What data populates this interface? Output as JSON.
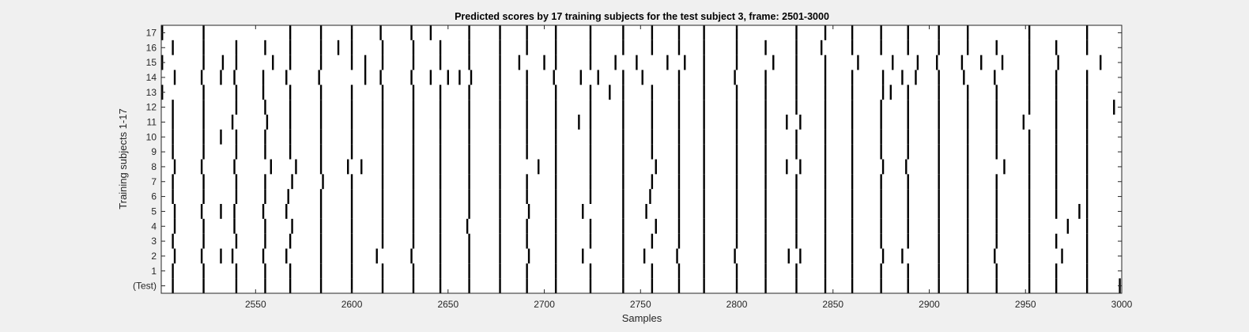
{
  "chart_data": {
    "type": "heatmap",
    "title": "Predicted scores by 17 training subjects for the test subject 3, frame: 2501-3000",
    "xlabel": "Samples",
    "ylabel": "Training subjects 1-17",
    "xlim": [
      2501,
      3000
    ],
    "xticks": [
      2550,
      2600,
      2650,
      2700,
      2750,
      2800,
      2850,
      2900,
      2950,
      3000
    ],
    "yticks": [
      "(Test)",
      "1",
      "2",
      "3",
      "4",
      "5",
      "6",
      "7",
      "8",
      "9",
      "10",
      "11",
      "12",
      "13",
      "14",
      "15",
      "16",
      "17"
    ],
    "grid": false,
    "colors": {
      "background": "#ffffff",
      "mark": "#000000",
      "figure": "#f0f0f0"
    },
    "rows": [
      {
        "label": "(Test)",
        "events": [
          2507,
          2523,
          2540,
          2555,
          2568,
          2584,
          2600,
          2616,
          2632,
          2646,
          2661,
          2677,
          2691,
          2706,
          2724,
          2741,
          2756,
          2770,
          2783,
          2800,
          2815,
          2831,
          2846,
          2860,
          2875,
          2889,
          2905,
          2920,
          2935,
          2952,
          2966,
          2982,
          2999
        ]
      },
      {
        "label": "1",
        "events": [
          2507,
          2523,
          2540,
          2555,
          2568,
          2584,
          2600,
          2616,
          2632,
          2646,
          2661,
          2677,
          2691,
          2706,
          2724,
          2741,
          2756,
          2770,
          2783,
          2800,
          2815,
          2831,
          2846,
          2860,
          2875,
          2889,
          2905,
          2920,
          2935,
          2952,
          2966,
          2982
        ]
      },
      {
        "label": "2",
        "events": [
          2508,
          2522,
          2532,
          2538,
          2554,
          2566,
          2584,
          2600,
          2613,
          2631,
          2646,
          2661,
          2677,
          2692,
          2706,
          2720,
          2741,
          2752,
          2769,
          2783,
          2799,
          2815,
          2827,
          2833,
          2846,
          2860,
          2876,
          2886,
          2905,
          2920,
          2934,
          2952,
          2969,
          2982
        ]
      },
      {
        "label": "3",
        "events": [
          2507,
          2523,
          2540,
          2555,
          2568,
          2584,
          2600,
          2616,
          2632,
          2646,
          2661,
          2677,
          2691,
          2706,
          2724,
          2741,
          2756,
          2770,
          2783,
          2800,
          2815,
          2831,
          2846,
          2860,
          2875,
          2889,
          2905,
          2920,
          2935,
          2952,
          2966,
          2982
        ]
      },
      {
        "label": "4",
        "events": [
          2508,
          2523,
          2539,
          2555,
          2569,
          2584,
          2600,
          2616,
          2632,
          2646,
          2660,
          2677,
          2691,
          2706,
          2724,
          2741,
          2758,
          2770,
          2783,
          2800,
          2815,
          2831,
          2846,
          2860,
          2875,
          2889,
          2905,
          2920,
          2935,
          2952,
          2972,
          2982
        ]
      },
      {
        "label": "5",
        "events": [
          2508,
          2522,
          2532,
          2539,
          2554,
          2566,
          2584,
          2600,
          2616,
          2632,
          2646,
          2661,
          2677,
          2692,
          2706,
          2720,
          2741,
          2753,
          2770,
          2783,
          2800,
          2815,
          2831,
          2846,
          2860,
          2875,
          2889,
          2905,
          2920,
          2935,
          2952,
          2966,
          2978,
          2982
        ]
      },
      {
        "label": "6",
        "events": [
          2507,
          2523,
          2540,
          2555,
          2567,
          2584,
          2600,
          2616,
          2632,
          2646,
          2661,
          2677,
          2691,
          2706,
          2724,
          2741,
          2755,
          2770,
          2783,
          2800,
          2815,
          2831,
          2846,
          2860,
          2875,
          2889,
          2905,
          2920,
          2935,
          2952,
          2966,
          2982
        ]
      },
      {
        "label": "7",
        "events": [
          2507,
          2523,
          2540,
          2555,
          2569,
          2585,
          2600,
          2616,
          2632,
          2646,
          2661,
          2677,
          2691,
          2706,
          2724,
          2741,
          2756,
          2770,
          2783,
          2800,
          2815,
          2831,
          2846,
          2860,
          2875,
          2889,
          2905,
          2920,
          2935,
          2952,
          2966,
          2982
        ]
      },
      {
        "label": "8",
        "events": [
          2508,
          2522,
          2539,
          2558,
          2571,
          2584,
          2598,
          2605,
          2616,
          2632,
          2646,
          2661,
          2677,
          2697,
          2706,
          2724,
          2741,
          2758,
          2770,
          2783,
          2800,
          2815,
          2826,
          2833,
          2846,
          2860,
          2876,
          2888,
          2905,
          2920,
          2939,
          2952,
          2966,
          2982
        ]
      },
      {
        "label": "9",
        "events": [
          2507,
          2523,
          2540,
          2555,
          2568,
          2584,
          2600,
          2616,
          2632,
          2646,
          2661,
          2677,
          2691,
          2706,
          2724,
          2741,
          2756,
          2770,
          2783,
          2800,
          2815,
          2831,
          2846,
          2860,
          2875,
          2889,
          2905,
          2920,
          2935,
          2952,
          2966,
          2982
        ]
      },
      {
        "label": "10",
        "events": [
          2507,
          2523,
          2532,
          2540,
          2555,
          2568,
          2584,
          2600,
          2616,
          2632,
          2646,
          2661,
          2677,
          2691,
          2706,
          2724,
          2741,
          2756,
          2770,
          2783,
          2800,
          2815,
          2831,
          2846,
          2860,
          2875,
          2889,
          2905,
          2920,
          2935,
          2952,
          2966,
          2982
        ]
      },
      {
        "label": "11",
        "events": [
          2507,
          2523,
          2538,
          2556,
          2568,
          2584,
          2600,
          2616,
          2632,
          2646,
          2661,
          2677,
          2691,
          2706,
          2718,
          2724,
          2741,
          2756,
          2770,
          2783,
          2800,
          2815,
          2826,
          2833,
          2846,
          2860,
          2875,
          2889,
          2905,
          2920,
          2935,
          2949,
          2966,
          2982
        ]
      },
      {
        "label": "12",
        "events": [
          2507,
          2523,
          2540,
          2555,
          2568,
          2584,
          2600,
          2616,
          2632,
          2646,
          2661,
          2677,
          2691,
          2706,
          2724,
          2741,
          2756,
          2770,
          2783,
          2800,
          2815,
          2831,
          2846,
          2860,
          2875,
          2889,
          2905,
          2920,
          2935,
          2952,
          2966,
          2982,
          2996
        ]
      },
      {
        "label": "13",
        "events": [
          2501,
          2523,
          2540,
          2554,
          2568,
          2584,
          2600,
          2616,
          2632,
          2646,
          2661,
          2677,
          2691,
          2706,
          2724,
          2734,
          2741,
          2756,
          2770,
          2783,
          2800,
          2815,
          2831,
          2846,
          2860,
          2876,
          2880,
          2889,
          2905,
          2920,
          2935,
          2952,
          2966,
          2982
        ]
      },
      {
        "label": "14",
        "events": [
          2508,
          2522,
          2532,
          2539,
          2554,
          2566,
          2583,
          2607,
          2615,
          2631,
          2641,
          2650,
          2656,
          2662,
          2677,
          2691,
          2705,
          2719,
          2728,
          2741,
          2751,
          2770,
          2783,
          2799,
          2815,
          2831,
          2846,
          2860,
          2876,
          2886,
          2893,
          2905,
          2918,
          2934,
          2952,
          2966,
          2982
        ]
      },
      {
        "label": "15",
        "events": [
          2501,
          2523,
          2533,
          2540,
          2559,
          2568,
          2584,
          2600,
          2607,
          2616,
          2632,
          2646,
          2661,
          2677,
          2687,
          2700,
          2706,
          2724,
          2737,
          2748,
          2764,
          2773,
          2783,
          2800,
          2819,
          2831,
          2846,
          2863,
          2881,
          2894,
          2904,
          2917,
          2927,
          2938,
          2952,
          2967,
          2989
        ]
      },
      {
        "label": "16",
        "events": [
          2507,
          2523,
          2540,
          2555,
          2568,
          2584,
          2593,
          2600,
          2616,
          2632,
          2646,
          2661,
          2677,
          2691,
          2706,
          2724,
          2741,
          2756,
          2770,
          2783,
          2800,
          2815,
          2831,
          2844,
          2860,
          2875,
          2889,
          2905,
          2920,
          2935,
          2952,
          2966,
          2982
        ]
      },
      {
        "label": "17",
        "events": [
          2501,
          2523,
          2568,
          2584,
          2600,
          2615,
          2631,
          2641,
          2661,
          2677,
          2691,
          2706,
          2724,
          2741,
          2756,
          2770,
          2783,
          2800,
          2831,
          2846,
          2860,
          2875,
          2889,
          2905,
          2920,
          2952,
          2982
        ]
      }
    ]
  }
}
